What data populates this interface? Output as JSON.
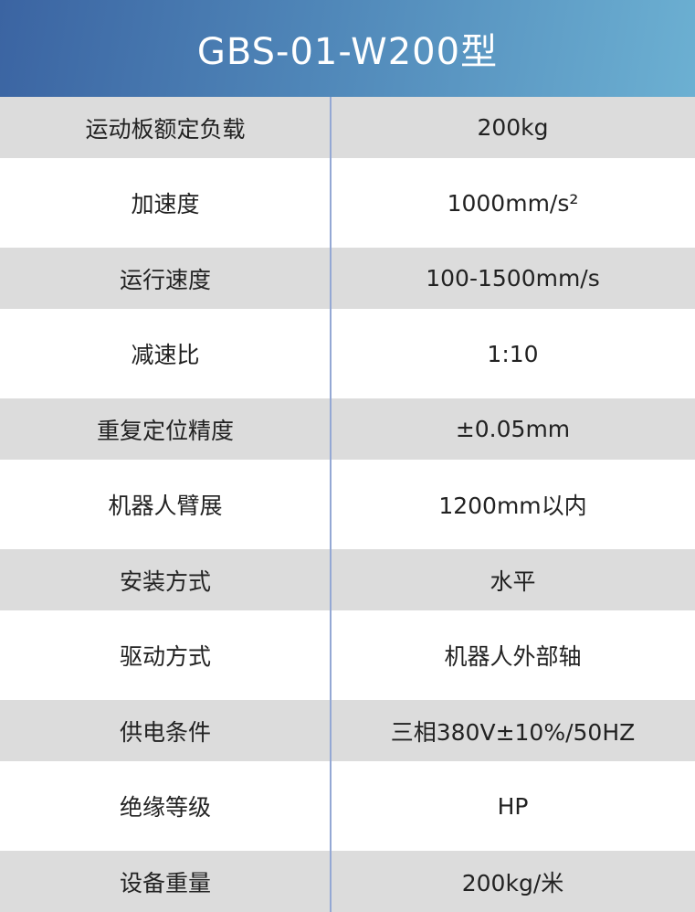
{
  "title": "GBS-01-W200型",
  "rows": [
    {
      "label": "运动板额定负载",
      "value": "200kg"
    },
    {
      "label": "加速度",
      "value": "1000mm/s²"
    },
    {
      "label": "运行速度",
      "value": "100-1500mm/s"
    },
    {
      "label": "减速比",
      "value": "1:10"
    },
    {
      "label": "重复定位精度",
      "value": "±0.05mm"
    },
    {
      "label": "机器人臂展",
      "value": "1200mm以内"
    },
    {
      "label": "安装方式",
      "value": "水平"
    },
    {
      "label": "驱动方式",
      "value": "机器人外部轴"
    },
    {
      "label": "供电条件",
      "value": "三相380V±10%/50HZ"
    },
    {
      "label": "绝缘等级",
      "value": "HP"
    },
    {
      "label": "设备重量",
      "value": "200kg/米"
    }
  ]
}
